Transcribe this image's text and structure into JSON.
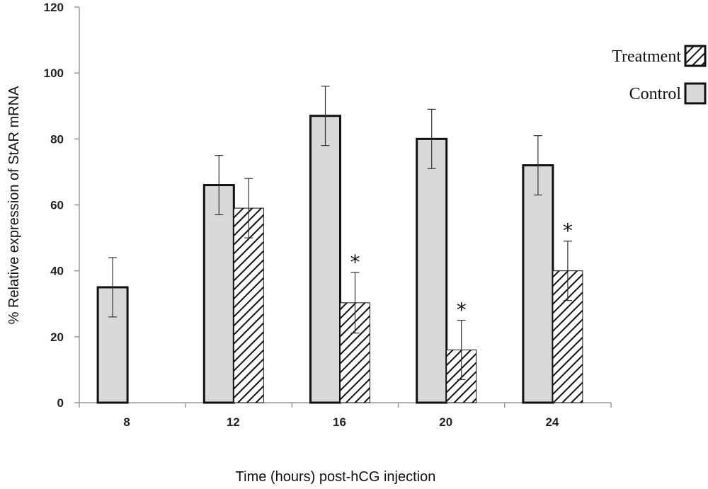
{
  "chart_data": {
    "type": "bar",
    "title": "",
    "xlabel": "Time (hours) post-hCG injection",
    "ylabel": "% Relative expression of StAR mRNA",
    "ylim": [
      0,
      120
    ],
    "yticks": [
      0,
      20,
      40,
      60,
      80,
      100,
      120
    ],
    "categories": [
      "8",
      "12",
      "16",
      "20",
      "24"
    ],
    "legend_position": "top-right",
    "series": [
      {
        "name": "Control",
        "fill": "solid-light-gray",
        "color": "#d9d9d9",
        "values": [
          35,
          66,
          87,
          80,
          72
        ],
        "errors": [
          9,
          9,
          9,
          9,
          9
        ]
      },
      {
        "name": "Treatment",
        "fill": "diagonal-hatch",
        "color": "#ffffff",
        "values": [
          null,
          59,
          30.3,
          16,
          40
        ],
        "errors": [
          null,
          9,
          9.2,
          9,
          9
        ]
      }
    ],
    "significance_markers": [
      {
        "category": "16",
        "series": "Treatment",
        "label": "*"
      },
      {
        "category": "20",
        "series": "Treatment",
        "label": "*"
      },
      {
        "category": "24",
        "series": "Treatment",
        "label": "*"
      }
    ]
  }
}
